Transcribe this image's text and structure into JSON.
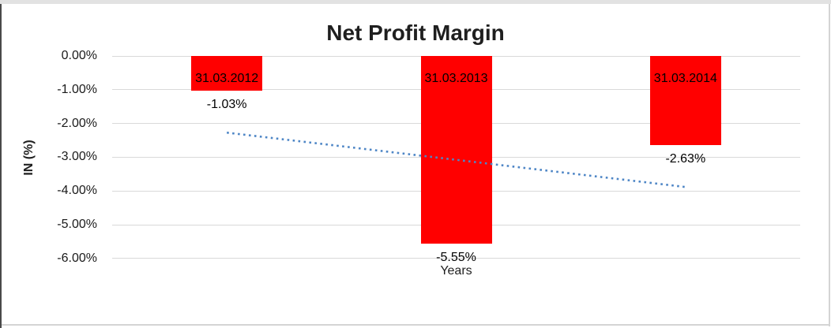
{
  "chart_data": {
    "type": "bar",
    "title": "Net Profit Margin",
    "xlabel": "Years",
    "ylabel": "IN (%)",
    "categories": [
      "31.03.2012",
      "31.03.2013",
      "31.03.2014"
    ],
    "values": [
      -1.03,
      -5.55,
      -2.63
    ],
    "data_labels": [
      "-1.03%",
      "-5.55%",
      "-2.63%"
    ],
    "y_ticks": [
      "0.00%",
      "-1.00%",
      "-2.00%",
      "-3.00%",
      "-4.00%",
      "-5.00%",
      "-6.00%"
    ],
    "ylim": [
      -6,
      0
    ],
    "grid": true,
    "legend": "none",
    "bar_color": "#FF0000",
    "gridline_color": "#D9D9D9",
    "label_color": "#000000",
    "title_color": "#1F1F1F",
    "trendline": {
      "style": "dotted",
      "color": "#4E86C6",
      "start_value": -2.27,
      "end_value": -3.88
    }
  }
}
